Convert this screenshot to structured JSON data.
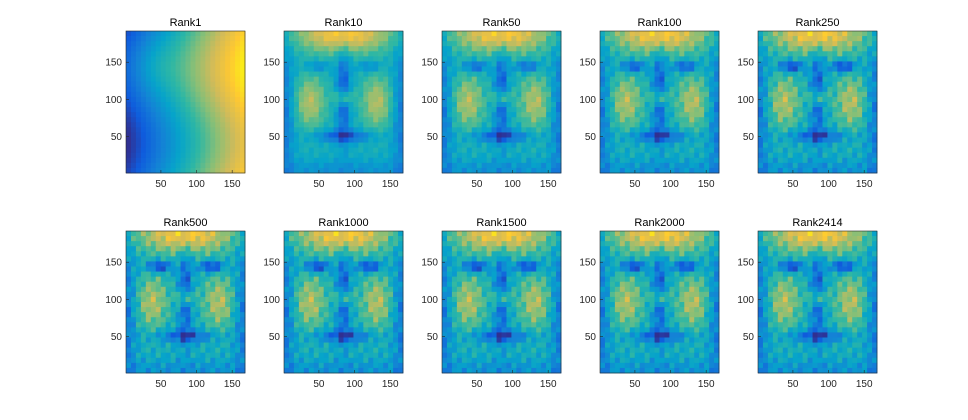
{
  "chart_data": {
    "type": "heatmap",
    "colormap": "parula",
    "colors": [
      "#352a87",
      "#0f5cdd",
      "#1481d6",
      "#06a4ca",
      "#2eb7a4",
      "#87bf77",
      "#d1bb59",
      "#fec832",
      "#f9fb0e"
    ],
    "grid": false,
    "xlim": [
      1,
      168
    ],
    "ylim": [
      1,
      192
    ],
    "xticks": [
      50,
      100,
      150
    ],
    "yticks": [
      50,
      100,
      150
    ],
    "subplots": [
      {
        "title": "Rank1",
        "rank": 1
      },
      {
        "title": "Rank10",
        "rank": 10
      },
      {
        "title": "Rank50",
        "rank": 50
      },
      {
        "title": "Rank100",
        "rank": 100
      },
      {
        "title": "Rank250",
        "rank": 250
      },
      {
        "title": "Rank500",
        "rank": 500
      },
      {
        "title": "Rank1000",
        "rank": 1000
      },
      {
        "title": "Rank1500",
        "rank": 1500
      },
      {
        "title": "Rank2000",
        "rank": 2000
      },
      {
        "title": "Rank2414",
        "rank": 2414
      }
    ]
  }
}
